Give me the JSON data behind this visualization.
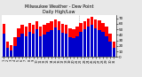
{
  "title": "Milwaukee Weather - Dew Point",
  "subtitle": "Daily High/Low",
  "ylim": [
    0,
    75
  ],
  "yticks": [
    0,
    10,
    20,
    30,
    40,
    50,
    60,
    70
  ],
  "background_color": "#e8e8e8",
  "plot_bg": "#ffffff",
  "high_color": "#ff0000",
  "low_color": "#0000cc",
  "days": [
    1,
    2,
    3,
    4,
    5,
    6,
    7,
    8,
    9,
    10,
    11,
    12,
    13,
    14,
    15,
    16,
    17,
    18,
    19,
    20,
    21,
    22,
    23,
    24,
    25,
    26,
    27,
    28,
    29,
    30,
    31
  ],
  "high": [
    60,
    28,
    22,
    35,
    52,
    58,
    55,
    62,
    58,
    65,
    55,
    58,
    62,
    65,
    68,
    64,
    60,
    58,
    52,
    50,
    55,
    62,
    65,
    70,
    72,
    68,
    66,
    62,
    55,
    42,
    28
  ],
  "low": [
    42,
    16,
    12,
    20,
    36,
    42,
    38,
    46,
    42,
    50,
    38,
    40,
    46,
    48,
    54,
    48,
    44,
    42,
    36,
    34,
    38,
    46,
    50,
    55,
    58,
    52,
    48,
    46,
    38,
    28,
    16
  ]
}
